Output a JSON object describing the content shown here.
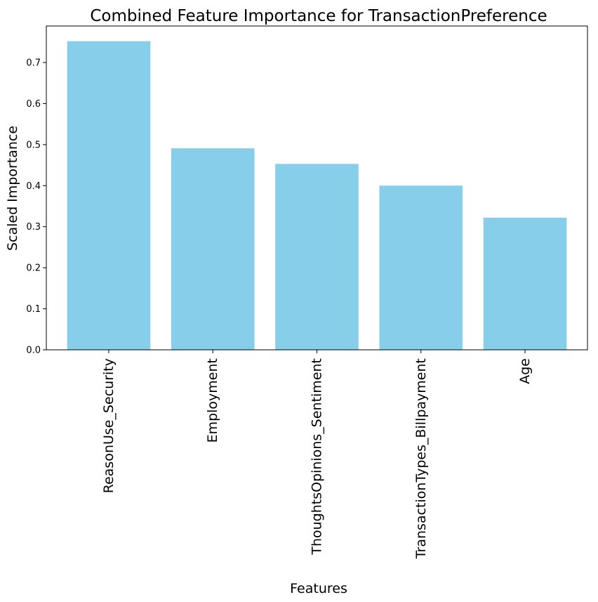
{
  "chart_data": {
    "type": "bar",
    "title": "Combined Feature Importance for TransactionPreference",
    "xlabel": "Features",
    "ylabel": "Scaled Importance",
    "categories": [
      "ReasonUse_Security",
      "Employment",
      "ThoughtsOpinions_Sentiment",
      "TransactionTypes_Billpayment",
      "Age"
    ],
    "values": [
      0.752,
      0.491,
      0.453,
      0.4,
      0.322
    ],
    "ylim": [
      0,
      0.789
    ],
    "yticks": [
      0.0,
      0.1,
      0.2,
      0.3,
      0.4,
      0.5,
      0.6,
      0.7
    ],
    "ytick_labels": [
      "0.0",
      "0.1",
      "0.2",
      "0.3",
      "0.4",
      "0.5",
      "0.6",
      "0.7"
    ],
    "bar_color": "#87ceeb",
    "grid": false,
    "legend": "none"
  }
}
